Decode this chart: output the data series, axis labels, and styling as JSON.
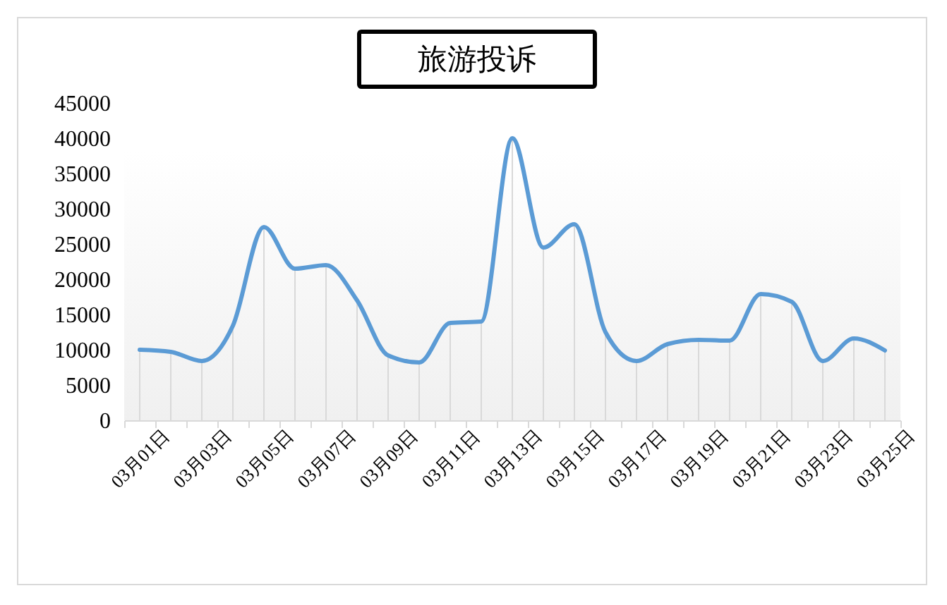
{
  "chart_data": {
    "type": "line",
    "title": "旅游投诉",
    "categories": [
      "03月01日",
      null,
      "03月03日",
      null,
      "03月05日",
      null,
      "03月07日",
      null,
      "03月09日",
      null,
      "03月11日",
      null,
      "03月13日",
      null,
      "03月15日",
      null,
      "03月17日",
      null,
      "03月19日",
      null,
      "03月21日",
      null,
      "03月23日",
      null,
      "03月25日"
    ],
    "series": [
      {
        "type": "bar",
        "color": "#d9d9d9",
        "values": [
          10000,
          9700,
          8400,
          13400,
          27400,
          21500,
          22000,
          17000,
          9200,
          8200,
          13800,
          14000,
          40000,
          24500,
          27800,
          12500,
          8400,
          10800,
          11400,
          11300,
          17900,
          16800,
          8400,
          11600,
          9900
        ]
      },
      {
        "color": "#5b9bd5",
        "values": [
          10000,
          9700,
          8400,
          13400,
          27400,
          21500,
          22000,
          17000,
          9200,
          8200,
          13800,
          14000,
          40000,
          24500,
          27800,
          12500,
          8400,
          10800,
          11400,
          11300,
          17900,
          16800,
          8400,
          11600,
          9900
        ]
      }
    ],
    "ylim": [
      0,
      45000
    ],
    "yticks": [
      0,
      5000,
      10000,
      15000,
      20000,
      25000,
      30000,
      35000,
      40000,
      45000
    ]
  }
}
